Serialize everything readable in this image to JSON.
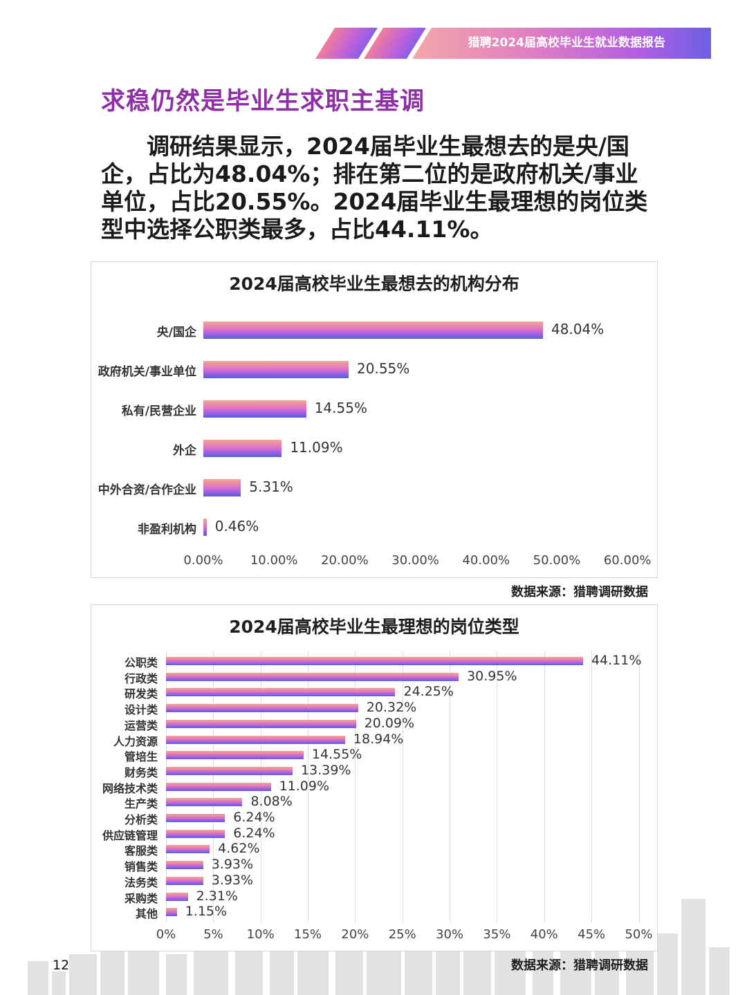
{
  "header": {
    "banner_text": "猎聘2024届高校毕业生就业数据报告"
  },
  "section_title": "求稳仍然是毕业生求职主基调",
  "body_text": "调研结果显示，2024届毕业生最想去的是央/国企，占比为48.04%；排在第二位的是政府机关/事业单位，占比20.55%。2024届毕业生最理想的岗位类型中选择公职类最多，占比44.11%。",
  "chart1": {
    "source": "数据来源：猎聘调研数据",
    "tick_labels": [
      "0.00%",
      "10.00%",
      "20.00%",
      "30.00%",
      "40.00%",
      "50.00%",
      "60.00%"
    ],
    "value_labels": [
      "48.04%",
      "20.55%",
      "14.55%",
      "11.09%",
      "5.31%",
      "0.46%"
    ]
  },
  "chart2": {
    "source": "数据来源：猎聘调研数据",
    "tick_labels": [
      "0%",
      "5%",
      "10%",
      "15%",
      "20%",
      "25%",
      "30%",
      "35%",
      "40%",
      "45%",
      "50%"
    ],
    "value_labels": [
      "44.11%",
      "30.95%",
      "24.25%",
      "20.32%",
      "20.09%",
      "18.94%",
      "14.55%",
      "13.39%",
      "11.09%",
      "8.08%",
      "6.24%",
      "6.24%",
      "4.62%",
      "3.93%",
      "3.93%",
      "2.31%",
      "1.15%"
    ]
  },
  "page_number": "12",
  "colors": {
    "title_purple": "#8e2fa6",
    "bar_start": "#f2a88e",
    "bar_mid": "#df72c6",
    "bar_end": "#4e63cf"
  },
  "chart_data": [
    {
      "type": "bar",
      "orientation": "horizontal",
      "title": "2024届高校毕业生最想去的机构分布",
      "categories": [
        "央/国企",
        "政府机关/事业单位",
        "私有/民营企业",
        "外企",
        "中外合资/合作企业",
        "非盈利机构"
      ],
      "values": [
        48.04,
        20.55,
        14.55,
        11.09,
        5.31,
        0.46
      ],
      "unit": "%",
      "xlim": [
        0,
        60
      ],
      "grid": false
    },
    {
      "type": "bar",
      "orientation": "horizontal",
      "title": "2024届高校毕业生最理想的岗位类型",
      "categories": [
        "公职类",
        "行政类",
        "研发类",
        "设计类",
        "运营类",
        "人力资源",
        "管培生",
        "财务类",
        "网络技术类",
        "生产类",
        "分析类",
        "供应链管理",
        "客服类",
        "销售类",
        "法务类",
        "采购类",
        "其他"
      ],
      "values": [
        44.11,
        30.95,
        24.25,
        20.32,
        20.09,
        18.94,
        14.55,
        13.39,
        11.09,
        8.08,
        6.24,
        6.24,
        4.62,
        3.93,
        3.93,
        2.31,
        1.15
      ],
      "unit": "%",
      "xlim": [
        0,
        50
      ],
      "grid": true
    }
  ]
}
